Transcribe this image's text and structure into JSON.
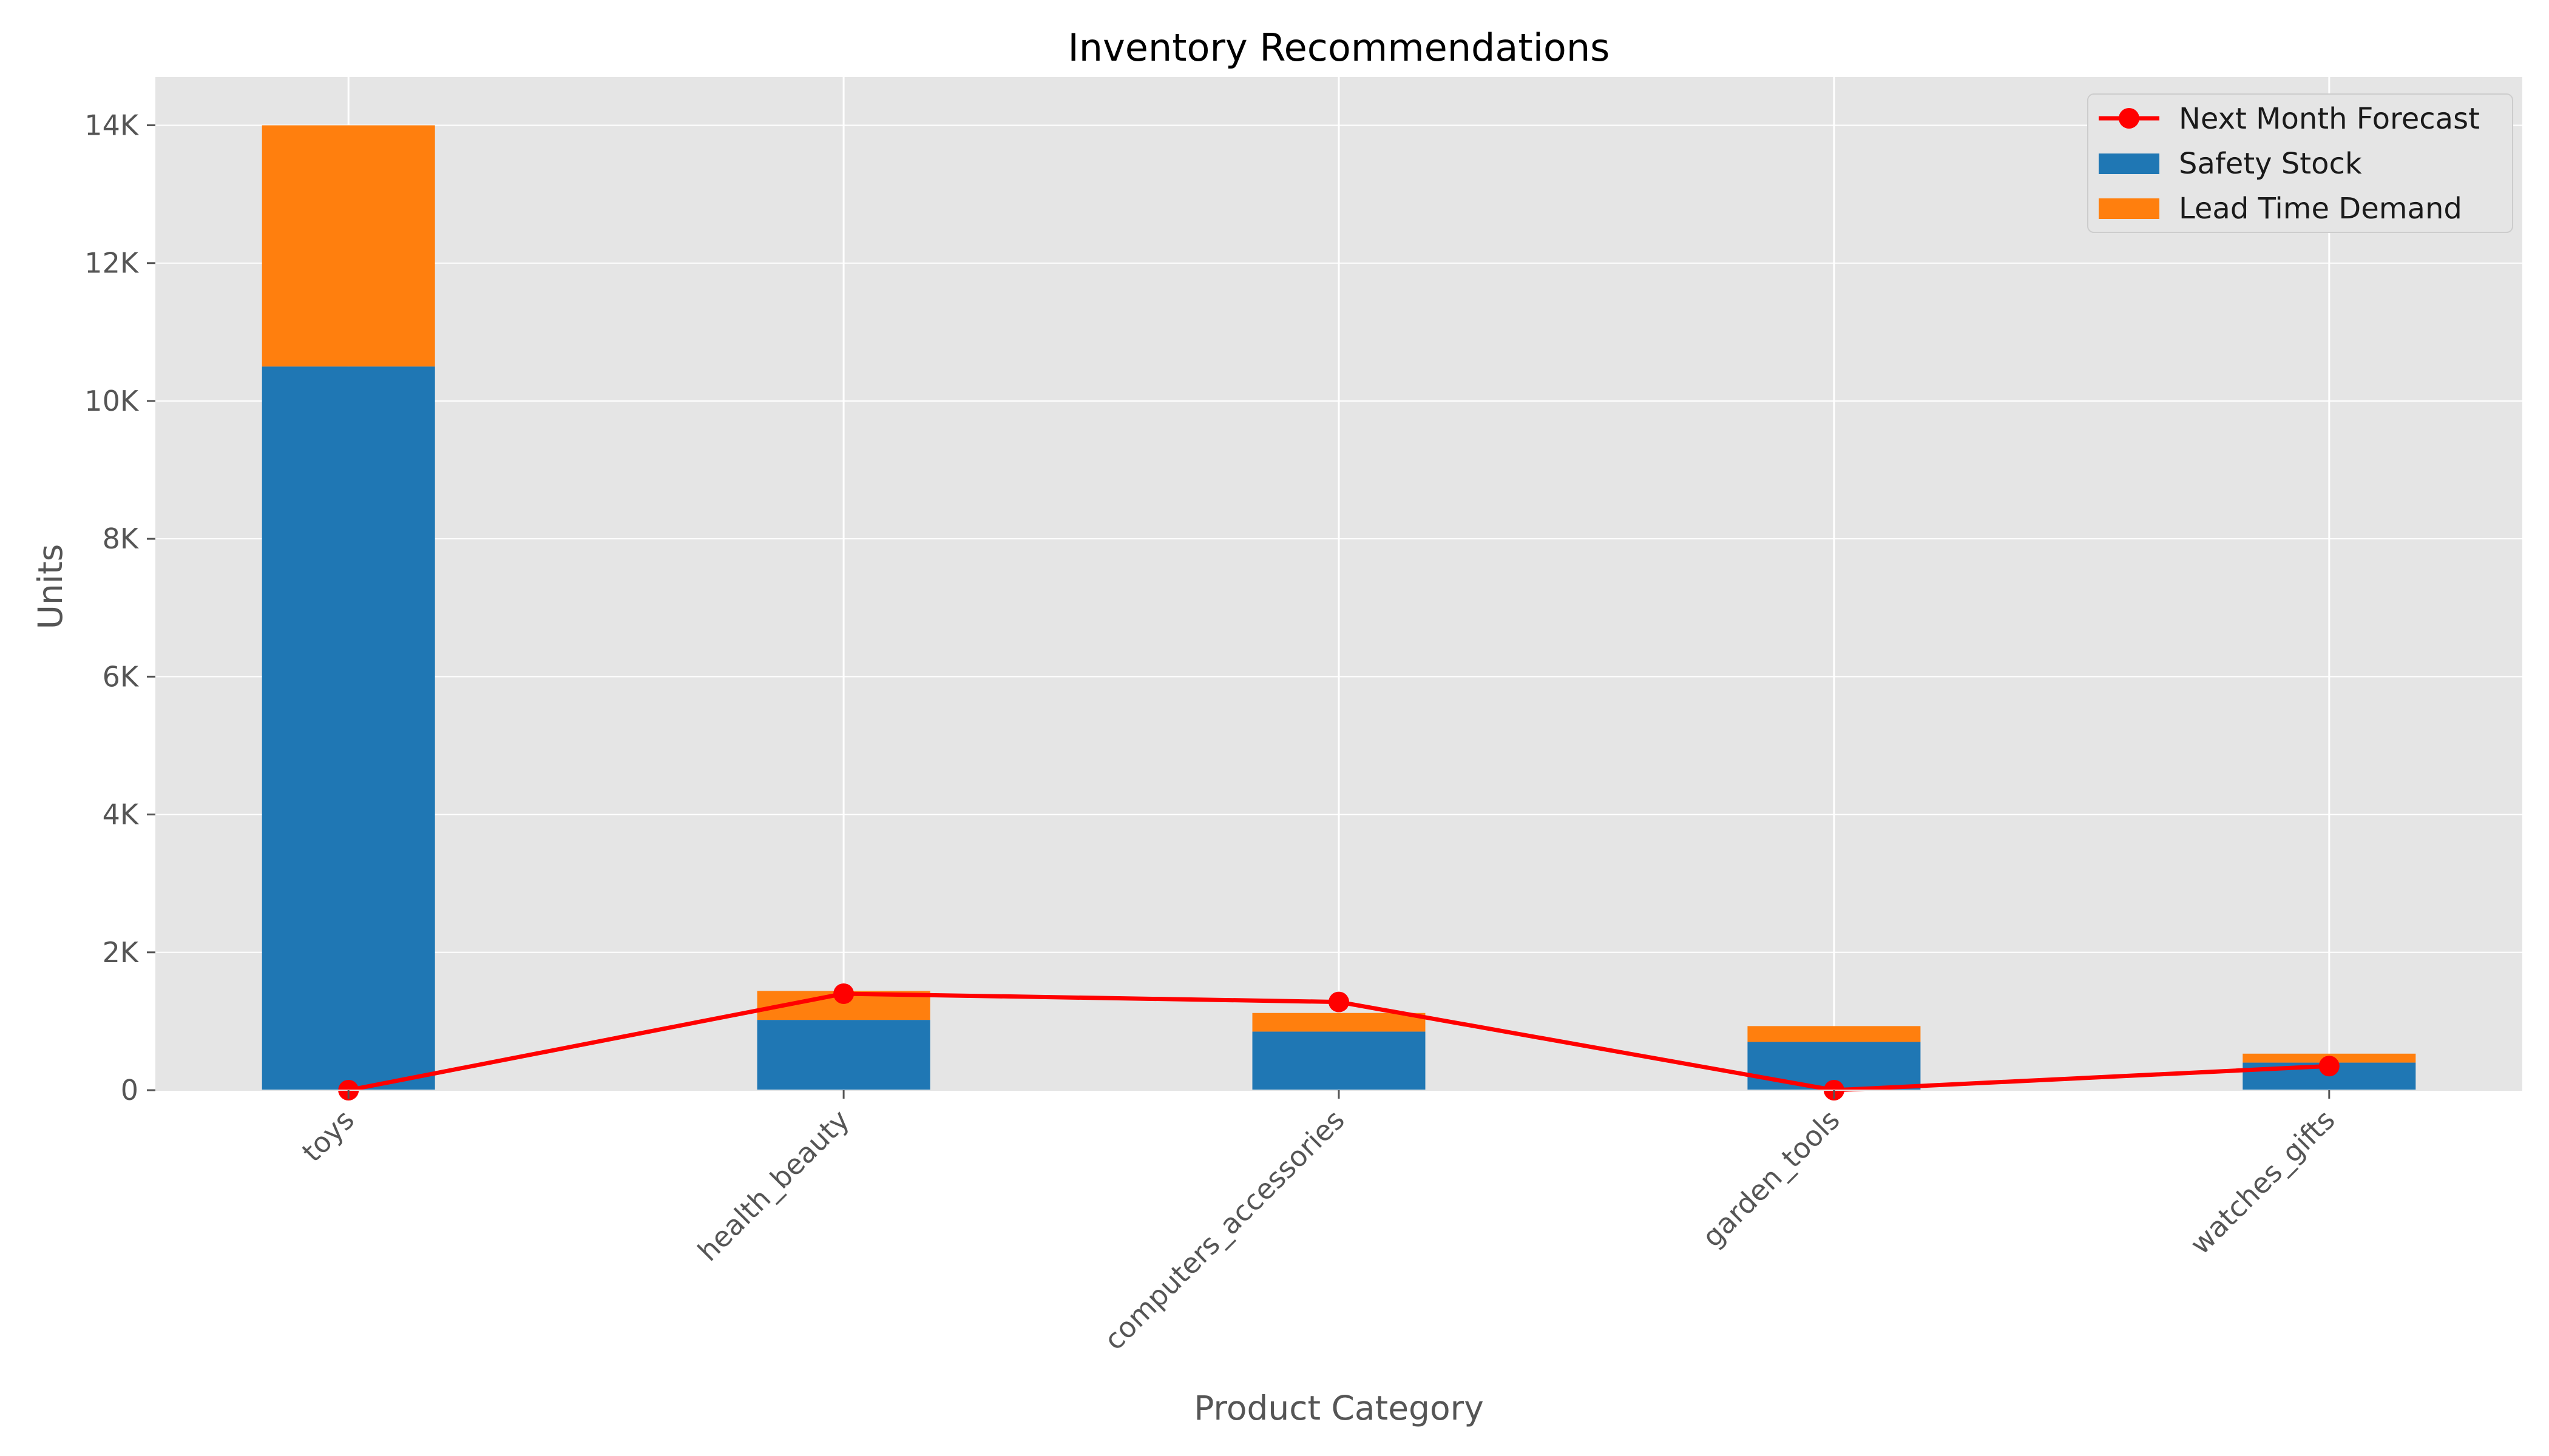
{
  "chart_data": {
    "type": "bar",
    "stacked": true,
    "title": "Inventory Recommendations",
    "xlabel": "Product Category",
    "ylabel": "Units",
    "categories": [
      "toys",
      "health_beauty",
      "computers_accessories",
      "garden_tools",
      "watches_gifts"
    ],
    "series": [
      {
        "name": "Safety Stock",
        "type": "bar",
        "color": "#1f77b4",
        "values": [
          10500,
          1020,
          850,
          700,
          400
        ]
      },
      {
        "name": "Lead Time Demand",
        "type": "bar",
        "color": "#ff7f0e",
        "values": [
          3500,
          420,
          270,
          230,
          130
        ]
      },
      {
        "name": "Next Month Forecast",
        "type": "line",
        "color": "#ff0000",
        "marker": "circle",
        "values": [
          0,
          1400,
          1280,
          0,
          350
        ]
      }
    ],
    "ylim": [
      0,
      14700
    ],
    "yticks": [
      0,
      2000,
      4000,
      6000,
      8000,
      10000,
      12000,
      14000
    ],
    "ytick_labels": [
      "0",
      "2K",
      "4K",
      "6K",
      "8K",
      "10K",
      "12K",
      "14K"
    ],
    "grid": true,
    "legend": {
      "position": "top-right",
      "entries": [
        "Next Month Forecast",
        "Safety Stock",
        "Lead Time Demand"
      ]
    },
    "background": "#e5e5e5"
  }
}
